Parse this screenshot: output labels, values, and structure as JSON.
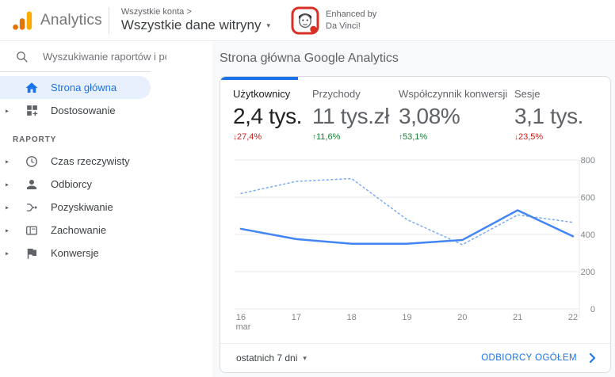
{
  "header": {
    "logo_text": "Analytics",
    "breadcrumb_top": "Wszystkie konta >",
    "breadcrumb_main": "Wszystkie dane witryny",
    "badge_line1": "Enhanced by",
    "badge_line2": "Da Vinci!"
  },
  "sidebar": {
    "search_placeholder": "Wyszukiwanie raportów i po",
    "items": [
      {
        "label": "Strona główna",
        "icon": "home-icon",
        "active": true,
        "expandable": false
      },
      {
        "label": "Dostosowanie",
        "icon": "customization-icon",
        "active": false,
        "expandable": true
      }
    ],
    "section_label": "RAPORTY",
    "report_items": [
      {
        "label": "Czas rzeczywisty",
        "icon": "clock-icon",
        "expandable": true
      },
      {
        "label": "Odbiorcy",
        "icon": "person-icon",
        "expandable": true
      },
      {
        "label": "Pozyskiwanie",
        "icon": "acquisition-icon",
        "expandable": true
      },
      {
        "label": "Zachowanie",
        "icon": "behavior-icon",
        "expandable": true
      },
      {
        "label": "Konwersje",
        "icon": "flag-icon",
        "expandable": true
      }
    ]
  },
  "main": {
    "title": "Strona główna Google Analytics",
    "metrics": [
      {
        "label": "Użytkownicy",
        "value": "2,4 tys.",
        "arrow": "↓",
        "delta": "27,4%",
        "direction": "down",
        "active": true
      },
      {
        "label": "Przychody",
        "value": "11 tys.zł",
        "arrow": "↑",
        "delta": "11,6%",
        "direction": "up",
        "active": false
      },
      {
        "label": "Współczynnik konwersji",
        "value": "3,08%",
        "arrow": "↑",
        "delta": "53,1%",
        "direction": "up",
        "active": false
      },
      {
        "label": "Sesje",
        "value": "3,1 tys.",
        "arrow": "↓",
        "delta": "23,5%",
        "direction": "down",
        "active": false
      }
    ],
    "footer": {
      "range_label": "ostatnich 7 dni",
      "link_label": "ODBIORCY OGÓŁEM"
    }
  },
  "chart_data": {
    "type": "line",
    "title": "",
    "xlabel": "",
    "ylabel": "",
    "x_tick_labels": [
      "16",
      "17",
      "18",
      "19",
      "20",
      "21",
      "22"
    ],
    "x_first_sublabel": "mar",
    "ylim": [
      0,
      800
    ],
    "yticks": [
      0,
      200,
      400,
      600,
      800
    ],
    "grid": true,
    "legend": "none",
    "series": [
      {
        "name": "current_period",
        "style": "solid",
        "color": "#4285f4",
        "values": [
          430,
          375,
          350,
          350,
          370,
          530,
          390
        ]
      },
      {
        "name": "previous_period",
        "style": "dashed",
        "color": "#7baaf7",
        "values": [
          620,
          685,
          700,
          480,
          345,
          505,
          465
        ]
      }
    ]
  },
  "icons": {
    "expand_chevron": "▸",
    "dropdown_caret": "▾",
    "delta_up": "↑",
    "delta_down": "↓"
  },
  "colors": {
    "accent": "#1a73e8",
    "line_current": "#4285f4",
    "line_previous": "#7baaf7",
    "positive": "#188038",
    "negative": "#c5221f",
    "main_bg": "#f8f9fa",
    "sidebar_active_bg": "#e8f0fe"
  }
}
